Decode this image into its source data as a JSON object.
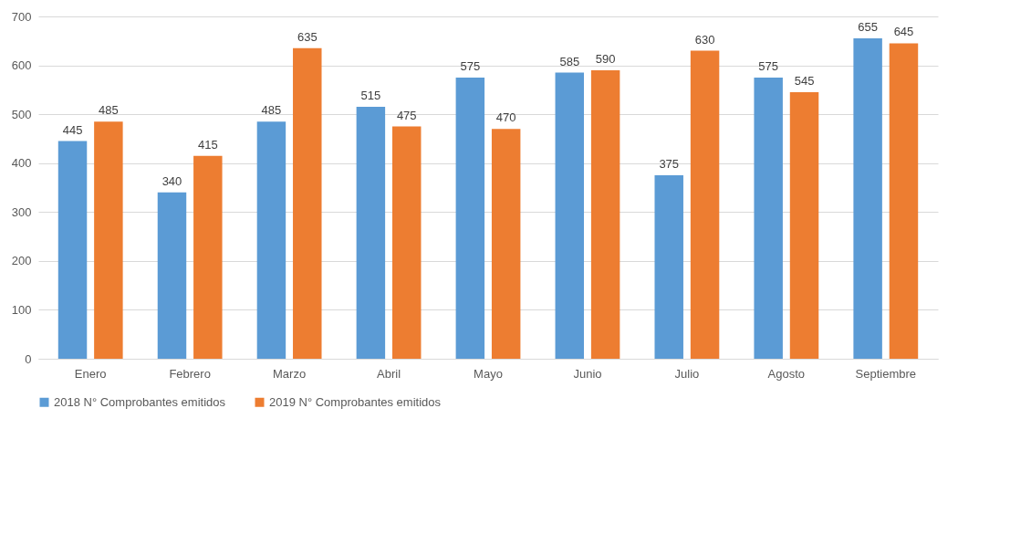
{
  "chart_data": {
    "type": "bar",
    "categories": [
      "Enero",
      "Febrero",
      "Marzo",
      "Abril",
      "Mayo",
      "Junio",
      "Julio",
      "Agosto",
      "Septiembre"
    ],
    "series": [
      {
        "name": "2018 N° Comprobantes emitidos",
        "color": "#5b9bd5",
        "values": [
          445,
          340,
          485,
          515,
          575,
          585,
          375,
          575,
          655
        ]
      },
      {
        "name": "2019 N° Comprobantes emitidos",
        "color": "#ed7d31",
        "values": [
          485,
          415,
          635,
          475,
          470,
          590,
          630,
          545,
          645
        ]
      }
    ],
    "ylim": [
      0,
      700
    ],
    "yticks": [
      0,
      100,
      200,
      300,
      400,
      500,
      600,
      700
    ],
    "grid": "y",
    "legend": "bottom",
    "data_labels": true
  }
}
